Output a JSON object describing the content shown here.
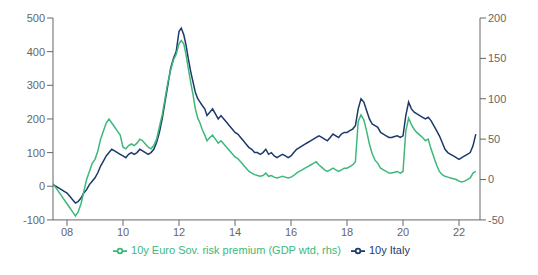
{
  "chart_data": {
    "type": "line",
    "x": [
      2007.5,
      2007.6,
      2007.7,
      2007.8,
      2007.9,
      2008.0,
      2008.1,
      2008.2,
      2008.3,
      2008.4,
      2008.5,
      2008.6,
      2008.7,
      2008.8,
      2008.9,
      2009.0,
      2009.1,
      2009.2,
      2009.3,
      2009.4,
      2009.5,
      2009.6,
      2009.7,
      2009.8,
      2009.9,
      2010.0,
      2010.1,
      2010.2,
      2010.3,
      2010.4,
      2010.5,
      2010.6,
      2010.7,
      2010.8,
      2010.9,
      2011.0,
      2011.1,
      2011.2,
      2011.3,
      2011.4,
      2011.5,
      2011.6,
      2011.7,
      2011.8,
      2011.9,
      2012.0,
      2012.08,
      2012.17,
      2012.25,
      2012.33,
      2012.42,
      2012.5,
      2012.58,
      2012.67,
      2012.75,
      2012.83,
      2012.92,
      2013.0,
      2013.1,
      2013.2,
      2013.3,
      2013.4,
      2013.5,
      2013.6,
      2013.7,
      2013.8,
      2013.9,
      2014.0,
      2014.1,
      2014.2,
      2014.3,
      2014.4,
      2014.5,
      2014.6,
      2014.7,
      2014.8,
      2014.9,
      2015.0,
      2015.1,
      2015.2,
      2015.3,
      2015.4,
      2015.5,
      2015.6,
      2015.7,
      2015.8,
      2015.9,
      2016.0,
      2016.1,
      2016.2,
      2016.3,
      2016.4,
      2016.5,
      2016.6,
      2016.7,
      2016.8,
      2016.9,
      2017.0,
      2017.1,
      2017.2,
      2017.3,
      2017.4,
      2017.5,
      2017.6,
      2017.7,
      2017.8,
      2017.9,
      2018.0,
      2018.1,
      2018.2,
      2018.3,
      2018.4,
      2018.5,
      2018.6,
      2018.7,
      2018.8,
      2018.9,
      2019.0,
      2019.1,
      2019.2,
      2019.3,
      2019.4,
      2019.5,
      2019.6,
      2019.7,
      2019.8,
      2019.9,
      2020.0,
      2020.1,
      2020.2,
      2020.3,
      2020.4,
      2020.5,
      2020.6,
      2020.7,
      2020.8,
      2020.9,
      2021.0,
      2021.1,
      2021.2,
      2021.3,
      2021.4,
      2021.5,
      2021.6,
      2021.7,
      2021.8,
      2021.9,
      2022.0,
      2022.1,
      2022.2,
      2022.3,
      2022.4,
      2022.5,
      2022.6
    ],
    "series": [
      {
        "name": "10y Italy",
        "color": "#1b3a6b",
        "values": [
          5,
          0,
          -5,
          -10,
          -15,
          -20,
          -30,
          -40,
          -50,
          -45,
          -35,
          -20,
          -10,
          5,
          15,
          25,
          40,
          60,
          75,
          90,
          100,
          110,
          105,
          100,
          95,
          90,
          85,
          95,
          100,
          95,
          100,
          110,
          105,
          100,
          95,
          100,
          110,
          130,
          160,
          200,
          250,
          300,
          350,
          380,
          400,
          460,
          470,
          450,
          420,
          380,
          340,
          310,
          280,
          260,
          250,
          240,
          230,
          210,
          220,
          230,
          215,
          200,
          210,
          200,
          190,
          180,
          170,
          160,
          155,
          145,
          135,
          125,
          115,
          110,
          100,
          100,
          95,
          100,
          110,
          95,
          100,
          90,
          85,
          90,
          95,
          90,
          85,
          90,
          100,
          110,
          115,
          120,
          125,
          130,
          135,
          140,
          145,
          150,
          145,
          140,
          135,
          145,
          155,
          150,
          145,
          155,
          160,
          160,
          165,
          170,
          180,
          230,
          260,
          250,
          225,
          200,
          185,
          180,
          175,
          160,
          155,
          150,
          145,
          145,
          148,
          150,
          145,
          150,
          210,
          250,
          230,
          220,
          215,
          210,
          205,
          200,
          205,
          195,
          180,
          165,
          150,
          130,
          110,
          100,
          95,
          90,
          85,
          80,
          85,
          90,
          95,
          100,
          120,
          155
        ]
      },
      {
        "name": "10y Euro Sov. risk premium (GDP wtd, rhs)",
        "color": "#3db87a",
        "axis": "y2",
        "values": [
          -5,
          -10,
          -15,
          -20,
          -25,
          -30,
          -35,
          -40,
          -45,
          -40,
          -30,
          -15,
          0,
          10,
          20,
          25,
          35,
          50,
          60,
          70,
          75,
          70,
          65,
          60,
          55,
          40,
          38,
          42,
          44,
          42,
          45,
          50,
          48,
          44,
          40,
          38,
          42,
          50,
          65,
          80,
          100,
          120,
          135,
          148,
          155,
          168,
          172,
          168,
          155,
          138,
          120,
          105,
          88,
          76,
          70,
          62,
          55,
          48,
          52,
          55,
          50,
          45,
          48,
          44,
          40,
          36,
          32,
          28,
          26,
          22,
          18,
          14,
          10,
          8,
          6,
          5,
          4,
          5,
          8,
          4,
          5,
          3,
          2,
          3,
          4,
          3,
          2,
          3,
          5,
          8,
          10,
          12,
          14,
          16,
          18,
          20,
          22,
          18,
          15,
          12,
          10,
          12,
          14,
          12,
          10,
          12,
          14,
          14,
          16,
          18,
          22,
          72,
          80,
          74,
          60,
          44,
          32,
          24,
          20,
          14,
          12,
          10,
          8,
          8,
          9,
          10,
          8,
          10,
          60,
          76,
          68,
          62,
          58,
          55,
          52,
          48,
          50,
          38,
          28,
          18,
          10,
          6,
          4,
          3,
          2,
          1,
          0,
          -2,
          -3,
          -2,
          0,
          2,
          8,
          10
        ]
      }
    ],
    "xlim": [
      2007.5,
      2022.75
    ],
    "xticks": [
      {
        "value": 2008,
        "label": "08"
      },
      {
        "value": 2010,
        "label": "10"
      },
      {
        "value": 2012,
        "label": "12"
      },
      {
        "value": 2014,
        "label": "14"
      },
      {
        "value": 2016,
        "label": "16"
      },
      {
        "value": 2018,
        "label": "18"
      },
      {
        "value": 2020,
        "label": "20"
      },
      {
        "value": 2022,
        "label": "22"
      }
    ],
    "ylim": [
      -100,
      500
    ],
    "yticks": [
      -100,
      0,
      100,
      200,
      300,
      400,
      500
    ],
    "y2lim": [
      -50,
      200
    ],
    "y2ticks": [
      -50,
      0,
      50,
      100,
      150,
      200
    ],
    "grid": false,
    "legend": "bottom"
  }
}
